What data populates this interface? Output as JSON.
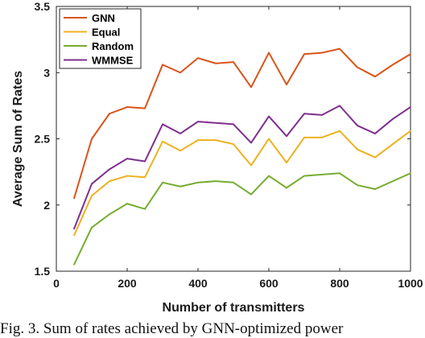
{
  "chart_data": {
    "type": "line",
    "xlabel": "Number of transmitters",
    "ylabel": "Average Sum of Rates",
    "xlim": [
      0,
      1000
    ],
    "ylim": [
      1.5,
      3.5
    ],
    "xticks": [
      0,
      200,
      400,
      600,
      800,
      1000
    ],
    "yticks": [
      1.5,
      2,
      2.5,
      3,
      3.5
    ],
    "ytick_labels": [
      "1.5",
      "2",
      "2.5",
      "3",
      "3.5"
    ],
    "grid": false,
    "legend_position": "top-left",
    "x": [
      50,
      100,
      150,
      200,
      250,
      300,
      350,
      400,
      450,
      500,
      550,
      600,
      650,
      700,
      750,
      800,
      850,
      900,
      950,
      1000
    ],
    "series": [
      {
        "name": "GNN",
        "color": "#d95319",
        "values": [
          2.05,
          2.5,
          2.69,
          2.74,
          2.73,
          3.06,
          3.0,
          3.11,
          3.07,
          3.08,
          2.89,
          3.15,
          2.91,
          3.14,
          3.15,
          3.18,
          3.04,
          2.97,
          3.06,
          3.14
        ]
      },
      {
        "name": "Equal",
        "color": "#edb120",
        "values": [
          1.77,
          2.07,
          2.18,
          2.22,
          2.21,
          2.48,
          2.41,
          2.49,
          2.49,
          2.46,
          2.3,
          2.5,
          2.32,
          2.51,
          2.51,
          2.56,
          2.42,
          2.36,
          2.46,
          2.56
        ]
      },
      {
        "name": "Random",
        "color": "#77ac30",
        "values": [
          1.55,
          1.83,
          1.93,
          2.01,
          1.97,
          2.17,
          2.14,
          2.17,
          2.18,
          2.17,
          2.08,
          2.22,
          2.13,
          2.22,
          2.23,
          2.24,
          2.15,
          2.12,
          2.18,
          2.24
        ]
      },
      {
        "name": "WMMSE",
        "color": "#7e2f8e",
        "values": [
          1.82,
          2.16,
          2.27,
          2.35,
          2.33,
          2.61,
          2.54,
          2.63,
          2.62,
          2.61,
          2.47,
          2.67,
          2.52,
          2.69,
          2.68,
          2.75,
          2.6,
          2.54,
          2.65,
          2.74
        ]
      }
    ]
  },
  "caption": "Fig. 3. Sum of rates achieved by GNN-optimized power"
}
